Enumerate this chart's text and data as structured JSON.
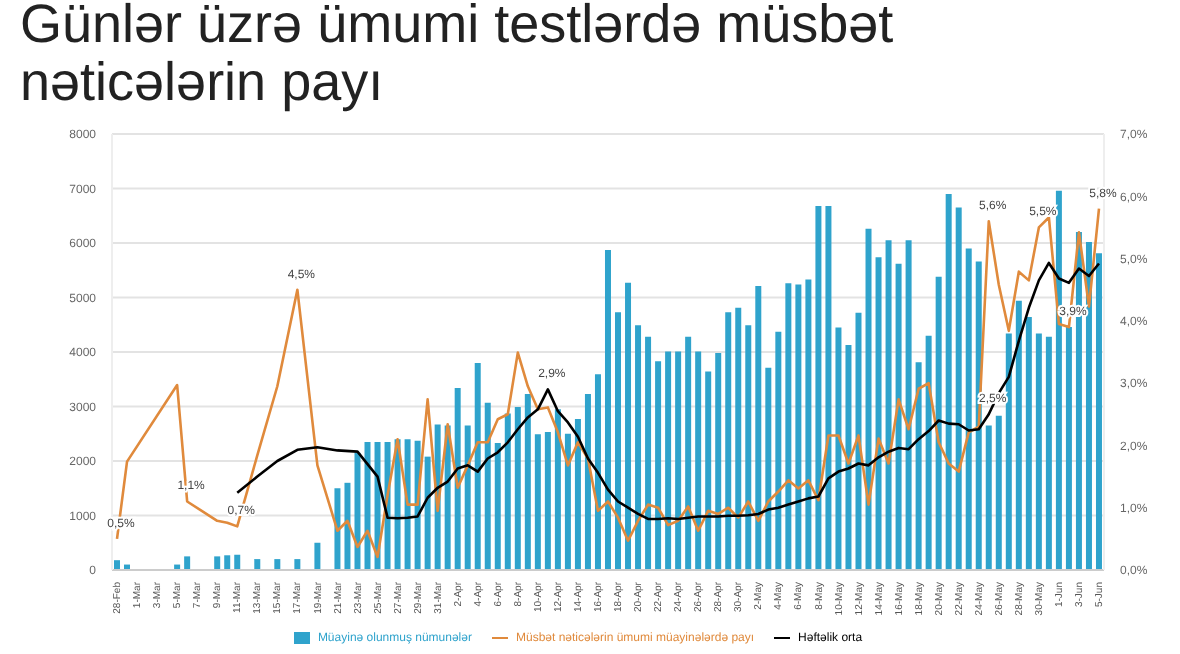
{
  "chart_data": {
    "type": "bar",
    "title": "Günlər üzrə ümumi testlərdə müsbət nəticələrin payı",
    "categories": [
      "28-Feb",
      null,
      "1-Mar",
      null,
      "3-Mar",
      null,
      "5-Mar",
      null,
      "7-Mar",
      null,
      "9-Mar",
      null,
      "11-Mar",
      null,
      "13-Mar",
      null,
      "15-Mar",
      null,
      "17-Mar",
      null,
      "19-Mar",
      null,
      "21-Mar",
      null,
      "23-Mar",
      null,
      "25-Mar",
      null,
      "27-Mar",
      null,
      "29-Mar",
      null,
      "31-Mar",
      null,
      "2-Apr",
      null,
      "4-Apr",
      null,
      "6-Apr",
      null,
      "8-Apr",
      null,
      "10-Apr",
      null,
      "12-Apr",
      null,
      "14-Apr",
      null,
      "16-Apr",
      null,
      "18-Apr",
      null,
      "20-Apr",
      null,
      "22-Apr",
      null,
      "24-Apr",
      null,
      "26-Apr",
      null,
      "28-Apr",
      null,
      "30-Apr",
      null,
      "2-May",
      null,
      "4-May",
      null,
      "6-May",
      null,
      "8-May",
      null,
      "10-May",
      null,
      "12-May",
      null,
      "14-May",
      null,
      "16-May",
      null,
      "18-May",
      null,
      "20-May",
      null,
      "22-May",
      null,
      "24-May",
      null,
      "26-May",
      null,
      "28-May",
      null,
      "30-May",
      null,
      "1-Jun",
      null,
      "3-Jun",
      null,
      "5-Jun"
    ],
    "series": [
      {
        "name": "Müayinə olunmuş nümunələr",
        "type": "bar",
        "color": "#2fa3cc",
        "values": [
          180,
          100,
          null,
          null,
          null,
          null,
          100,
          250,
          null,
          null,
          250,
          270,
          280,
          null,
          200,
          null,
          200,
          null,
          200,
          null,
          500,
          null,
          1500,
          1600,
          2150,
          2350,
          2350,
          2350,
          2400,
          2400,
          2370,
          2080,
          2670,
          2650,
          3340,
          2650,
          3800,
          3070,
          2330,
          2870,
          2990,
          3230,
          2490,
          2530,
          2950,
          2500,
          2770,
          3230,
          3590,
          5870,
          4730,
          5270,
          4490,
          4280,
          3830,
          4010,
          4010,
          4280,
          4010,
          3640,
          3980,
          4730,
          4810,
          4490,
          5210,
          3710,
          4370,
          5260,
          5240,
          5330,
          6680,
          6680,
          4450,
          4130,
          4720,
          6260,
          5740,
          6050,
          5620,
          6050,
          3810,
          4300,
          5380,
          6900,
          6650,
          5900,
          5660,
          2650,
          2830,
          4340,
          4940,
          4640,
          4340,
          4280,
          6960,
          4460,
          6200,
          6020,
          5810
        ]
      },
      {
        "name": "Müsbət nəticələrin ümumi müayinələrdə payı",
        "type": "line",
        "axis": "y2",
        "color": "#e08a3c",
        "values": [
          0.5,
          1.74,
          null,
          null,
          null,
          null,
          2.97,
          1.1,
          null,
          null,
          0.79,
          0.76,
          0.7,
          null,
          1.84,
          null,
          2.95,
          null,
          4.5,
          null,
          1.68,
          null,
          0.63,
          0.79,
          0.37,
          0.63,
          0.21,
          1.2,
          2.1,
          1.05,
          1.05,
          2.74,
          0.95,
          2.34,
          1.32,
          1.68,
          2.05,
          2.05,
          2.42,
          2.5,
          3.49,
          2.95,
          2.58,
          2.61,
          2.21,
          1.68,
          2.05,
          1.79,
          0.95,
          1.1,
          0.84,
          0.47,
          0.79,
          1.05,
          1.0,
          0.72,
          0.79,
          1.02,
          0.63,
          0.95,
          0.9,
          1.0,
          0.84,
          1.1,
          0.79,
          1.1,
          1.26,
          1.44,
          1.31,
          1.44,
          1.12,
          2.16,
          2.16,
          1.71,
          2.16,
          1.05,
          2.11,
          1.71,
          2.74,
          2.26,
          2.91,
          3.0,
          2.05,
          1.71,
          1.58,
          2.21,
          2.3,
          5.6,
          4.58,
          3.84,
          4.79,
          4.65,
          5.5,
          5.66,
          3.95,
          3.9,
          5.42,
          4.23,
          5.8
        ],
        "value_labels": [
          "0,5%",
          null,
          null,
          null,
          null,
          null,
          null,
          "1,1%",
          null,
          null,
          null,
          null,
          "0,7%",
          null,
          null,
          null,
          null,
          null,
          "4,5%",
          null,
          null,
          null,
          null,
          null,
          null,
          null,
          null,
          null,
          null,
          null,
          null,
          null,
          null,
          null,
          null,
          null,
          null,
          null,
          null,
          null,
          null,
          null,
          null,
          null,
          null,
          null,
          null,
          null,
          null,
          null,
          null,
          null,
          null,
          null,
          null,
          null,
          null,
          null,
          null,
          null,
          null,
          null,
          null,
          null,
          null,
          null,
          null,
          null,
          null,
          null,
          null,
          null,
          null,
          null,
          null,
          null,
          null,
          null,
          null,
          null,
          null,
          null,
          null,
          null,
          null,
          null,
          null,
          "5,6%",
          null,
          null,
          null,
          null,
          "5,5%",
          null,
          null,
          "3,9%",
          null,
          null,
          "5,8%"
        ]
      },
      {
        "name": "Həftəlik orta",
        "type": "line",
        "axis": "y2",
        "color": "#000000",
        "values": [
          null,
          null,
          null,
          null,
          null,
          null,
          null,
          null,
          null,
          null,
          null,
          null,
          1.24,
          null,
          1.5,
          null,
          1.75,
          null,
          1.93,
          null,
          1.97,
          null,
          1.92,
          null,
          1.9,
          null,
          1.5,
          0.84,
          0.83,
          0.84,
          0.86,
          1.16,
          1.32,
          1.42,
          1.63,
          1.68,
          1.58,
          1.79,
          1.89,
          2.05,
          2.26,
          2.45,
          2.58,
          2.9,
          2.55,
          2.37,
          2.14,
          1.79,
          1.56,
          1.29,
          1.1,
          1.0,
          0.9,
          0.82,
          0.82,
          0.83,
          0.82,
          0.84,
          0.86,
          0.86,
          0.86,
          0.87,
          0.87,
          0.88,
          0.9,
          0.97,
          1.0,
          1.05,
          1.1,
          1.15,
          1.18,
          1.47,
          1.58,
          1.63,
          1.71,
          1.68,
          1.81,
          1.9,
          1.96,
          1.94,
          2.1,
          2.23,
          2.4,
          2.35,
          2.34,
          2.24,
          2.26,
          2.5,
          2.84,
          3.1,
          3.68,
          4.21,
          4.65,
          4.93,
          4.68,
          4.61,
          4.84,
          4.72,
          4.92
        ],
        "value_labels": [
          null,
          null,
          null,
          null,
          null,
          null,
          null,
          null,
          null,
          null,
          null,
          null,
          null,
          null,
          null,
          null,
          null,
          null,
          null,
          null,
          null,
          null,
          null,
          null,
          null,
          null,
          null,
          null,
          null,
          null,
          null,
          null,
          null,
          null,
          null,
          null,
          null,
          null,
          null,
          null,
          null,
          null,
          null,
          "2,9%",
          null,
          null,
          null,
          null,
          null,
          null,
          null,
          null,
          null,
          null,
          null,
          null,
          null,
          null,
          null,
          null,
          null,
          null,
          null,
          null,
          null,
          null,
          null,
          null,
          null,
          null,
          null,
          null,
          null,
          null,
          null,
          null,
          null,
          null,
          null,
          null,
          null,
          null,
          null,
          null,
          null,
          null,
          null,
          "2,5%",
          null,
          null,
          null,
          null,
          null,
          null,
          null,
          null,
          null,
          null,
          null
        ]
      }
    ],
    "ylim": [
      0,
      8000
    ],
    "yticks": [
      0,
      1000,
      2000,
      3000,
      4000,
      5000,
      6000,
      7000,
      8000
    ],
    "y2lim": [
      0,
      7
    ],
    "y2ticks": [
      {
        "value": 0,
        "label": "0,0%"
      },
      {
        "value": 1,
        "label": "1,0%"
      },
      {
        "value": 2,
        "label": "2,0%"
      },
      {
        "value": 3,
        "label": "3,0%"
      },
      {
        "value": 4,
        "label": "4,0%"
      },
      {
        "value": 5,
        "label": "5,0%"
      },
      {
        "value": 6,
        "label": "6,0%"
      },
      {
        "value": 7,
        "label": "7,0%"
      }
    ],
    "grid": "y",
    "legend": "bottom",
    "marker": "none",
    "line_style": "solid"
  }
}
